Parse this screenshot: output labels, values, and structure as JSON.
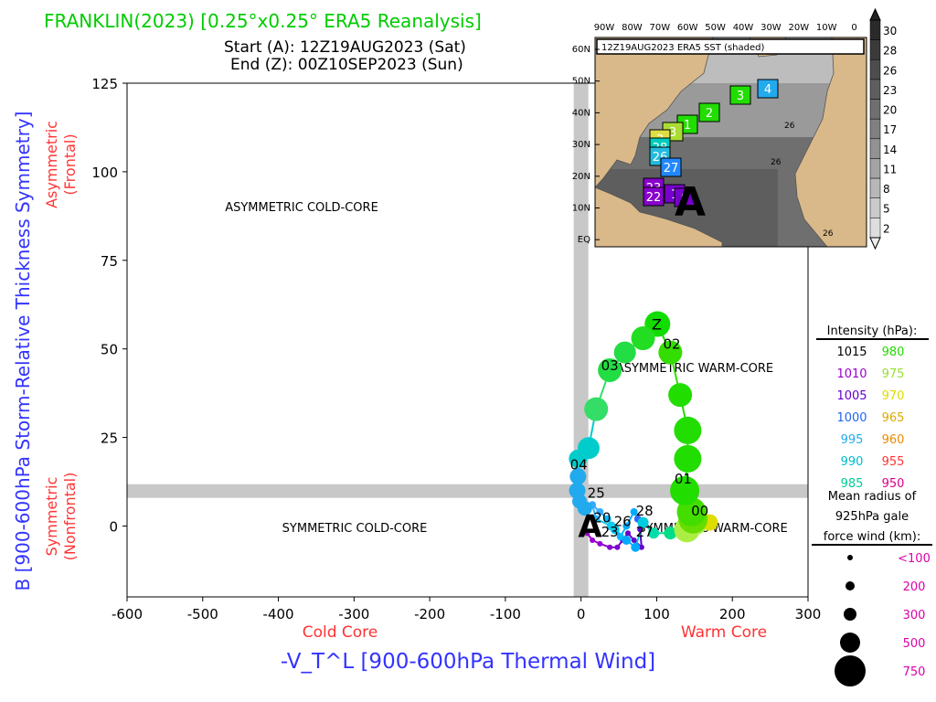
{
  "header": {
    "title": "FRANKLIN(2023) [0.25°x0.25° ERA5 Reanalysis]",
    "start_line": "Start (A): 12Z19AUG2023 (Sat)",
    "end_line": "End (Z): 00Z10SEP2023 (Sun)"
  },
  "colors": {
    "title": "#00cc00",
    "axis_blue": "#3333ff",
    "axis_red": "#ff3333",
    "divider": "#c8c8c8"
  },
  "chart_data": {
    "type": "scatter",
    "title": "FRANKLIN(2023) [0.25°x0.25° ERA5 Reanalysis]",
    "xlabel": "-V_T^L [900-600hPa Thermal Wind]",
    "ylabel": "B [900-600hPa Storm-Relative Thickness Symmetry]",
    "xlim": [
      -600,
      300
    ],
    "ylim": [
      -20,
      125
    ],
    "x_ticks": [
      "-600",
      "-500",
      "-400",
      "-300",
      "-200",
      "-100",
      "0",
      "100",
      "200",
      "300"
    ],
    "x_tick_values": [
      -600,
      -500,
      -400,
      -300,
      -200,
      -100,
      0,
      100,
      200,
      300
    ],
    "y_ticks": [
      "0",
      "25",
      "50",
      "75",
      "100",
      "125"
    ],
    "y_tick_values": [
      0,
      25,
      50,
      75,
      100,
      125
    ],
    "x_side_labels": {
      "cold": "Cold Core",
      "warm": "Warm Core"
    },
    "y_side_labels": {
      "upper_1": "Asymmetric",
      "upper_2": "(Frontal)",
      "lower_1": "Symmetric",
      "lower_2": "(Nonfrontal)"
    },
    "quadrant_labels": {
      "asym_cold": "ASYMMETRIC COLD-CORE",
      "asym_warm": "ASYMMETRIC WARM-CORE",
      "sym_cold": "SYMMETRIC COLD-CORE",
      "sym_warm": "SYMMETRIC WARM-CORE"
    },
    "divider_x": 0,
    "divider_y": 10,
    "start_marker": {
      "label": "A",
      "x": 12,
      "y": 0
    },
    "end_marker": {
      "label": "Z",
      "x": 100,
      "y": 57
    },
    "track": [
      {
        "x": 8,
        "y": -2,
        "color": "#9900cc",
        "r": 3
      },
      {
        "x": 15,
        "y": -4,
        "color": "#9900cc",
        "r": 3
      },
      {
        "x": 25,
        "y": -5,
        "color": "#9900cc",
        "r": 3
      },
      {
        "x": 38,
        "y": -6,
        "color": "#8800cc",
        "r": 3
      },
      {
        "x": 48,
        "y": -6,
        "color": "#7700cc",
        "r": 3
      },
      {
        "x": 55,
        "y": -4,
        "color": "#7700cc",
        "r": 3
      },
      {
        "x": 62,
        "y": -2,
        "color": "#6600cc",
        "r": 3
      },
      {
        "x": 70,
        "y": -4,
        "color": "#6600cc",
        "r": 3
      },
      {
        "x": 80,
        "y": -6,
        "color": "#6600cc",
        "r": 3
      },
      {
        "x": 78,
        "y": -1,
        "color": "#5500cc",
        "r": 3
      },
      {
        "x": 75,
        "y": 2,
        "color": "#3366ff",
        "r": 4
      },
      {
        "x": 70,
        "y": 4,
        "color": "#00aaff",
        "r": 4
      },
      {
        "x": 60,
        "y": 0,
        "color": "#00aaff",
        "r": 4
      },
      {
        "x": 52,
        "y": -3,
        "color": "#00bbff",
        "r": 4
      },
      {
        "x": 45,
        "y": -1,
        "color": "#00ccff",
        "r": 5
      },
      {
        "x": 35,
        "y": 2,
        "color": "#00bbff",
        "r": 4
      },
      {
        "x": 25,
        "y": 4,
        "color": "#33aaff",
        "r": 4
      },
      {
        "x": 15,
        "y": 6,
        "color": "#33aaff",
        "r": 4
      },
      {
        "x": 20,
        "y": 2,
        "color": "#22bbff",
        "r": 4
      },
      {
        "x": 40,
        "y": 0,
        "color": "#11ccee",
        "r": 5
      },
      {
        "x": 60,
        "y": -4,
        "color": "#00aaff",
        "r": 5
      },
      {
        "x": 72,
        "y": -6,
        "color": "#00aaff",
        "r": 5
      },
      {
        "x": 82,
        "y": 1,
        "color": "#00ccdd",
        "r": 6
      },
      {
        "x": 96,
        "y": -2,
        "color": "#00ddaa",
        "r": 6
      },
      {
        "x": 118,
        "y": -2,
        "color": "#00dd88",
        "r": 7
      },
      {
        "x": 140,
        "y": -1,
        "color": "#aaee44",
        "r": 14
      },
      {
        "x": 150,
        "y": 1,
        "color": "#aaee44",
        "r": 14
      },
      {
        "x": 170,
        "y": 1,
        "color": "#dddd00",
        "r": 9
      },
      {
        "x": 148,
        "y": 2,
        "color": "#66dd00",
        "r": 16
      },
      {
        "x": 146,
        "y": 4,
        "color": "#44dd00",
        "r": 16
      },
      {
        "x": 137,
        "y": 10,
        "color": "#22dd00",
        "r": 16
      },
      {
        "x": 141,
        "y": 19,
        "color": "#22dd00",
        "r": 15
      },
      {
        "x": 141,
        "y": 27,
        "color": "#22dd00",
        "r": 15
      },
      {
        "x": 131,
        "y": 37,
        "color": "#22dd00",
        "r": 13
      },
      {
        "x": 118,
        "y": 49,
        "color": "#33dd00",
        "r": 13
      },
      {
        "x": 101,
        "y": 57,
        "color": "#11dd00",
        "r": 14
      },
      {
        "x": 82,
        "y": 53,
        "color": "#22dd22",
        "r": 13
      },
      {
        "x": 58,
        "y": 49,
        "color": "#22dd44",
        "r": 12
      },
      {
        "x": 38,
        "y": 44,
        "color": "#22dd44",
        "r": 13
      },
      {
        "x": 20,
        "y": 33,
        "color": "#33dd66",
        "r": 13
      },
      {
        "x": 10,
        "y": 22,
        "color": "#00cccc",
        "r": 12
      },
      {
        "x": -4,
        "y": 19,
        "color": "#00cccc",
        "r": 10
      },
      {
        "x": -4,
        "y": 14,
        "color": "#22aaee",
        "r": 9
      },
      {
        "x": -5,
        "y": 10,
        "color": "#22aaee",
        "r": 9
      },
      {
        "x": -2,
        "y": 7,
        "color": "#22aaee",
        "r": 8
      },
      {
        "x": 5,
        "y": 5,
        "color": "#22aaee",
        "r": 8
      }
    ],
    "day_labels": [
      {
        "text": "00",
        "x": 157,
        "y": 3
      },
      {
        "text": "01",
        "x": 135,
        "y": 12
      },
      {
        "text": "02",
        "x": 120,
        "y": 50
      },
      {
        "text": "03",
        "x": 38,
        "y": 44
      },
      {
        "text": "04",
        "x": -3,
        "y": 16
      },
      {
        "text": "25",
        "x": 20,
        "y": 8
      },
      {
        "text": "28",
        "x": 84,
        "y": 3
      },
      {
        "text": "20",
        "x": 28,
        "y": 1
      },
      {
        "text": "26",
        "x": 55,
        "y": 0
      },
      {
        "text": "23",
        "x": 38,
        "y": -3
      },
      {
        "text": "27",
        "x": 84,
        "y": -3
      }
    ]
  },
  "inset": {
    "title": "12Z19AUG2023 ERA5 SST (shaded)",
    "lon_labels": [
      "90W",
      "80W",
      "70W",
      "60W",
      "50W",
      "40W",
      "30W",
      "20W",
      "10W",
      "0"
    ],
    "lat_labels": [
      "60N",
      "50N",
      "40N",
      "30N",
      "20N",
      "10N",
      "EQ"
    ],
    "colorbar_labels": [
      "30",
      "28",
      "26",
      "23",
      "20",
      "17",
      "14",
      "11",
      "8",
      "5",
      "2"
    ],
    "contour_labels": [
      "26",
      "26",
      "26"
    ],
    "start_label": "A",
    "boxes": [
      {
        "text": "4",
        "color": "#22aaee"
      },
      {
        "text": "3",
        "color": "#22dd00"
      },
      {
        "text": "2",
        "color": "#22dd00"
      },
      {
        "text": "1",
        "color": "#22dd00"
      },
      {
        "text": "3",
        "color": "#aadd33"
      },
      {
        "text": "3",
        "color": "#dddd44"
      },
      {
        "text": "28",
        "color": "#00ccbb"
      },
      {
        "text": "26",
        "color": "#22bbdd"
      },
      {
        "text": "27",
        "color": "#2288ff"
      },
      {
        "text": "23",
        "color": "#8800cc"
      },
      {
        "text": "22",
        "color": "#8800cc"
      },
      {
        "text": "1",
        "color": "#7700cc"
      },
      {
        "text": "0",
        "color": "#7700cc"
      }
    ]
  },
  "legend": {
    "intensity_title": "Intensity (hPa):",
    "intensity_rows": [
      {
        "left": "1015",
        "left_color": "#000000",
        "right": "980",
        "right_color": "#22dd00"
      },
      {
        "left": "1010",
        "left_color": "#9900cc",
        "right": "975",
        "right_color": "#99dd33"
      },
      {
        "left": "1005",
        "left_color": "#6600cc",
        "right": "970",
        "right_color": "#dddd00"
      },
      {
        "left": "1000",
        "left_color": "#2266ee",
        "right": "965",
        "right_color": "#ddaa00"
      },
      {
        "left": "995",
        "left_color": "#22aaee",
        "right": "960",
        "right_color": "#ee8800"
      },
      {
        "left": "990",
        "left_color": "#00bbcc",
        "right": "955",
        "right_color": "#ff3333"
      },
      {
        "left": "985",
        "left_color": "#00cc99",
        "right": "950",
        "right_color": "#dd0088"
      }
    ],
    "radius_title_1": "Mean radius of",
    "radius_title_2": "925hPa gale",
    "radius_title_3": "force wind (km):",
    "radius_rows": [
      {
        "label": "<100",
        "size": 3
      },
      {
        "label": "200",
        "size": 5
      },
      {
        "label": "300",
        "size": 7
      },
      {
        "label": "500",
        "size": 11
      },
      {
        "label": "750",
        "size": 17
      }
    ],
    "radius_color": "#dd00aa"
  }
}
